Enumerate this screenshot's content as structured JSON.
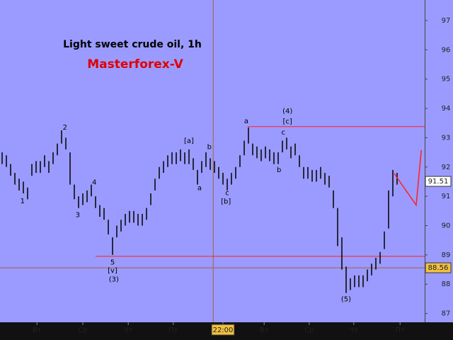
{
  "chart_data": {
    "type": "ohlc",
    "title": "Light sweet crude oil, 1h",
    "subtitle": "Masterforex-V",
    "bar_color": "#000000",
    "background": "#9b9bff",
    "high": [
      92.5,
      92.4,
      92.1,
      91.8,
      91.6,
      91.5,
      91.3,
      92.1,
      92.2,
      92.2,
      92.4,
      92.2,
      92.5,
      92.8,
      93.25,
      93.0,
      92.5,
      91.4,
      91.0,
      91.1,
      91.2,
      91.4,
      91.0,
      90.7,
      90.6,
      90.2,
      89.6,
      90.0,
      90.2,
      90.4,
      90.5,
      90.5,
      90.4,
      90.4,
      90.6,
      91.1,
      91.6,
      92.0,
      92.2,
      92.4,
      92.5,
      92.5,
      92.6,
      92.5,
      92.6,
      92.3,
      91.9,
      92.2,
      92.5,
      92.3,
      92.2,
      92.0,
      91.8,
      91.6,
      91.8,
      92.0,
      92.4,
      92.9,
      93.35,
      92.8,
      92.7,
      92.6,
      92.7,
      92.6,
      92.5,
      92.5,
      92.9,
      93.0,
      92.7,
      92.8,
      92.4,
      92.0,
      92.0,
      91.9,
      91.9,
      92.0,
      91.8,
      91.7,
      91.2,
      90.6,
      89.6,
      88.6,
      88.2,
      88.3,
      88.3,
      88.3,
      88.5,
      88.7,
      88.9,
      89.1,
      89.8,
      91.2,
      91.9,
      91.8
    ],
    "low": [
      92.1,
      92.0,
      91.7,
      91.4,
      91.2,
      91.1,
      90.9,
      91.7,
      91.8,
      91.8,
      92.0,
      91.8,
      92.1,
      92.4,
      92.8,
      92.6,
      91.4,
      90.9,
      90.6,
      90.7,
      90.8,
      91.0,
      90.6,
      90.3,
      90.2,
      89.7,
      89.0,
      89.6,
      89.8,
      90.0,
      90.1,
      90.1,
      90.0,
      90.0,
      90.2,
      90.7,
      91.2,
      91.6,
      91.8,
      92.0,
      92.1,
      92.1,
      92.2,
      92.1,
      92.1,
      91.9,
      91.4,
      91.8,
      92.0,
      91.9,
      91.8,
      91.6,
      91.4,
      91.2,
      91.4,
      91.6,
      92.0,
      92.4,
      92.8,
      92.4,
      92.3,
      92.2,
      92.3,
      92.2,
      92.1,
      92.1,
      92.5,
      92.6,
      92.3,
      92.4,
      92.0,
      91.6,
      91.6,
      91.5,
      91.5,
      91.6,
      91.4,
      91.3,
      90.6,
      89.3,
      88.5,
      87.7,
      87.8,
      87.9,
      87.9,
      87.9,
      88.1,
      88.3,
      88.5,
      88.7,
      89.2,
      89.9,
      91.0,
      91.4
    ],
    "xlim": [
      -0.5,
      99.5
    ],
    "ylim": [
      86.7,
      97.7
    ],
    "yticks": [
      87,
      88,
      89,
      90,
      91,
      92,
      93,
      94,
      95,
      96,
      97
    ],
    "xticks": [
      {
        "value": 8.2,
        "label": "Вт"
      },
      {
        "value": 19,
        "label": "Ср"
      },
      {
        "value": 29.7,
        "label": "Чт"
      },
      {
        "value": 40.3,
        "label": "Пт"
      },
      {
        "value": 52,
        "label": "22:00"
      },
      {
        "value": 61.7,
        "label": "Вт"
      },
      {
        "value": 72.3,
        "label": "Ср"
      },
      {
        "value": 82.8,
        "label": "Чт"
      },
      {
        "value": 93.7,
        "label": "Пт"
      }
    ],
    "highlight_tick": 4,
    "cursor_x": 49.7,
    "cursor_y": 88.56,
    "last_price": 91.51,
    "levels": [
      {
        "value": 93.38,
        "from": 57.8,
        "color": "#ff2020"
      },
      {
        "value": 88.95,
        "from": 22,
        "color": "#ff2020"
      }
    ],
    "forecast": {
      "color": "#ff2020",
      "x": [
        92.3,
        97.5,
        98.7
      ],
      "y": [
        91.78,
        90.7,
        92.58
      ]
    },
    "annotations": [
      {
        "text": "1",
        "x": 4.8,
        "y": 90.84
      },
      {
        "text": "2",
        "x": 14.8,
        "y": 93.35
      },
      {
        "text": "3",
        "x": 17.8,
        "y": 90.36
      },
      {
        "text": "4",
        "x": 21.7,
        "y": 91.47
      },
      {
        "text": "5",
        "x": 26,
        "y": 88.74
      },
      {
        "text": "[v]",
        "x": 26,
        "y": 88.47
      },
      {
        "text": "(3)",
        "x": 26.3,
        "y": 88.16
      },
      {
        "text": "[a]",
        "x": 44,
        "y": 92.89
      },
      {
        "text": "b",
        "x": 48.8,
        "y": 92.68
      },
      {
        "text": "a",
        "x": 46.5,
        "y": 91.28
      },
      {
        "text": "c",
        "x": 53,
        "y": 91.11
      },
      {
        "text": "[b]",
        "x": 52.7,
        "y": 90.82
      },
      {
        "text": "a",
        "x": 57.5,
        "y": 93.57
      },
      {
        "text": "(4)",
        "x": 67.2,
        "y": 93.91
      },
      {
        "text": "[c]",
        "x": 67.2,
        "y": 93.55
      },
      {
        "text": "c",
        "x": 66.2,
        "y": 93.18
      },
      {
        "text": "b",
        "x": 65.2,
        "y": 91.9
      },
      {
        "text": "(5)",
        "x": 81,
        "y": 87.48
      }
    ]
  }
}
